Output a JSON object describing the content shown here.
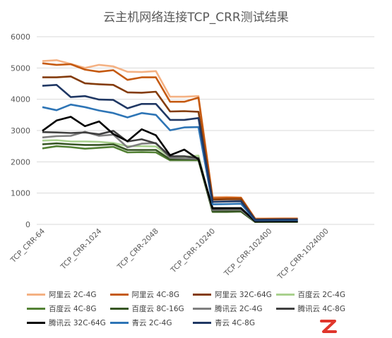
{
  "chart_data": {
    "type": "line",
    "title": "云主机网络连接TCP_CRR测试结果",
    "xlabel": "",
    "ylabel": "",
    "ylim": [
      0,
      6000
    ],
    "yticks": [
      0,
      1000,
      2000,
      3000,
      4000,
      5000,
      6000
    ],
    "grid": "horizontal",
    "legend_position": "bottom",
    "x": [
      1,
      2,
      3,
      4,
      5,
      6,
      7,
      8,
      9,
      10,
      11,
      12,
      13,
      14,
      15,
      16,
      17,
      18,
      19,
      20,
      21,
      22,
      23,
      24
    ],
    "xtick_labels": [
      "TCP_CRR-64",
      "TCP_CRR-1024",
      "TCP_CRR-2048",
      "TCP_CRR-10240",
      "TCP_CRR-102400",
      "TCP_CRR-1024000"
    ],
    "xtick_positions": [
      1,
      5,
      9,
      13,
      17,
      21
    ],
    "series": [
      {
        "name": "阿里云 2C-4G",
        "color": "#f4b183",
        "values": [
          5220,
          5250,
          5130,
          5000,
          5100,
          5050,
          4880,
          4870,
          4900,
          4080,
          4080,
          4100,
          870,
          880,
          860,
          190,
          190,
          195,
          195,
          null,
          null,
          null,
          null,
          null
        ]
      },
      {
        "name": "阿里云 4C-8G",
        "color": "#c55a11",
        "values": [
          5150,
          5100,
          5120,
          4950,
          4880,
          4930,
          4620,
          4700,
          4700,
          3920,
          3920,
          4050,
          840,
          850,
          850,
          170,
          175,
          178,
          180,
          null,
          null,
          null,
          null,
          null
        ]
      },
      {
        "name": "阿里云 32C-64G",
        "color": "#843c0c",
        "values": [
          4700,
          4700,
          4730,
          4510,
          4480,
          4460,
          4220,
          4210,
          4240,
          3610,
          3620,
          3600,
          790,
          800,
          800,
          160,
          160,
          162,
          165,
          null,
          null,
          null,
          null,
          null
        ]
      },
      {
        "name": "百度云 2C-4G",
        "color": "#a9d18e",
        "values": [
          2680,
          2690,
          2650,
          2650,
          2640,
          2600,
          2500,
          2500,
          2490,
          2150,
          2160,
          2200,
          420,
          430,
          430,
          80,
          82,
          85,
          85,
          null,
          null,
          null,
          null,
          null
        ]
      },
      {
        "name": "百度云 4C-8G",
        "color": "#548235",
        "values": [
          2430,
          2500,
          2470,
          2420,
          2450,
          2480,
          2300,
          2310,
          2300,
          2050,
          2050,
          2050,
          400,
          400,
          410,
          75,
          78,
          80,
          80,
          null,
          null,
          null,
          null,
          null
        ]
      },
      {
        "name": "百度云 8C-16G",
        "color": "#375623",
        "values": [
          2560,
          2590,
          2560,
          2540,
          2540,
          2560,
          2380,
          2380,
          2380,
          2080,
          2080,
          2080,
          410,
          410,
          420,
          80,
          80,
          80,
          80,
          null,
          null,
          null,
          null,
          null
        ]
      },
      {
        "name": "腾讯云 2C-4G",
        "color": "#7f7f7f",
        "values": [
          2780,
          2820,
          2830,
          2960,
          2830,
          2870,
          2460,
          2580,
          2600,
          2130,
          2110,
          2100,
          460,
          470,
          470,
          90,
          92,
          92,
          92,
          null,
          null,
          null,
          null,
          null
        ]
      },
      {
        "name": "腾讯云 4C-8G",
        "color": "#404040",
        "values": [
          2950,
          2940,
          2920,
          2940,
          2880,
          2990,
          2650,
          2720,
          2590,
          2180,
          2180,
          2120,
          490,
          500,
          500,
          95,
          96,
          96,
          96,
          null,
          null,
          null,
          null,
          null
        ]
      },
      {
        "name": "腾讯云 32C-64G",
        "color": "#000000",
        "values": [
          2990,
          3320,
          3440,
          3140,
          3290,
          2890,
          2660,
          3040,
          2850,
          2210,
          2390,
          2080,
          520,
          520,
          520,
          100,
          100,
          100,
          100,
          null,
          null,
          null,
          null,
          null
        ]
      },
      {
        "name": "青云 2C-4G",
        "color": "#2e75b6",
        "values": [
          3750,
          3650,
          3830,
          3750,
          3640,
          3560,
          3420,
          3560,
          3500,
          3010,
          3100,
          3110,
          640,
          650,
          660,
          130,
          132,
          135,
          135,
          null,
          null,
          null,
          null,
          null
        ]
      },
      {
        "name": "青云 4C-8G",
        "color": "#203864",
        "values": [
          4430,
          4460,
          4070,
          4100,
          3990,
          3980,
          3710,
          3850,
          3850,
          3340,
          3340,
          3400,
          720,
          730,
          740,
          150,
          152,
          155,
          155,
          null,
          null,
          null,
          null,
          null
        ]
      }
    ]
  },
  "watermark": {
    "glyph": "Z",
    "color": "#e0362c"
  }
}
